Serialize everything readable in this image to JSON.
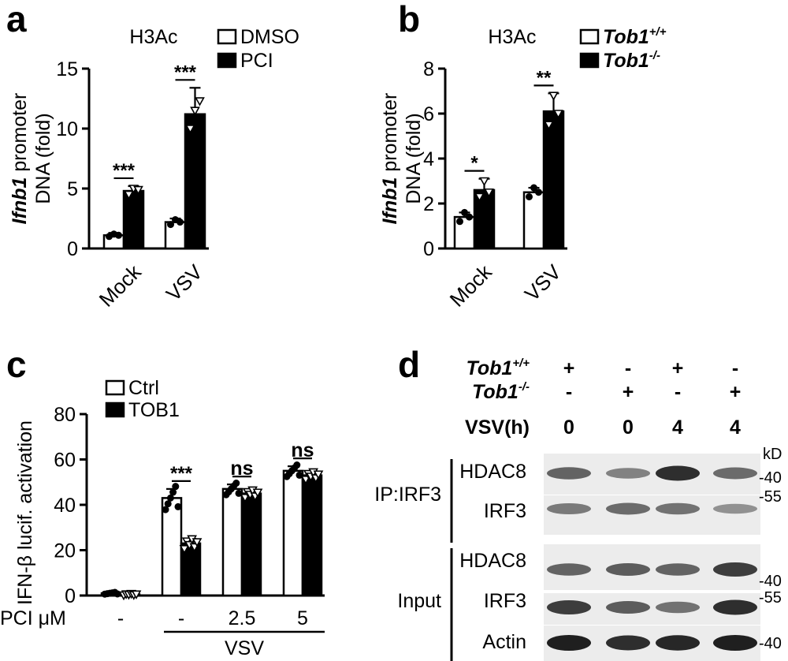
{
  "panels": [
    {
      "letter": "a"
    },
    {
      "letter": "b"
    },
    {
      "letter": "c"
    },
    {
      "letter": "d"
    }
  ],
  "chart_data": [
    {
      "panel": "a",
      "type": "bar",
      "title": "H3Ac",
      "ylabel_italic": "Ifnb1",
      "ylabel_rest": " promoter",
      "ylabel_line2": "DNA (fold)",
      "ylim": [
        0,
        15
      ],
      "yticks": [
        "0",
        "5",
        "10",
        "15"
      ],
      "categories": [
        "Mock",
        "VSV"
      ],
      "legend": [
        "DMSO",
        "PCI"
      ],
      "series": [
        {
          "name": "DMSO",
          "values": [
            1.1,
            2.2
          ],
          "errors": [
            0.2,
            0.3
          ],
          "points": [
            [
              1.0,
              1.2,
              1.1
            ],
            [
              2.0,
              2.4,
              2.2
            ]
          ]
        },
        {
          "name": "PCI",
          "values": [
            4.8,
            11.2
          ],
          "errors": [
            0.4,
            2.2
          ],
          "points": [
            [
              4.5,
              5.0,
              4.9
            ],
            [
              10.0,
              11.5,
              12.3
            ]
          ]
        }
      ],
      "significance": [
        "***",
        "***"
      ]
    },
    {
      "panel": "b",
      "type": "bar",
      "title": "H3Ac",
      "ylabel_italic": "Ifnb1",
      "ylabel_rest": " promoter",
      "ylabel_line2": "DNA (fold)",
      "ylim": [
        0,
        8
      ],
      "yticks": [
        "0",
        "2",
        "4",
        "6",
        "8"
      ],
      "categories": [
        "Mock",
        "VSV"
      ],
      "legend": [
        "Tob1",
        "Tob1"
      ],
      "legend_sup": [
        "+/+",
        "-/-"
      ],
      "series": [
        {
          "name": "Tob1+/+",
          "values": [
            1.4,
            2.5
          ],
          "errors": [
            0.2,
            0.2
          ],
          "points": [
            [
              1.2,
              1.6,
              1.4
            ],
            [
              2.3,
              2.7,
              2.5
            ]
          ]
        },
        {
          "name": "Tob1-/-",
          "values": [
            2.6,
            6.1
          ],
          "errors": [
            0.5,
            0.8
          ],
          "points": [
            [
              2.3,
              3.0,
              2.5
            ],
            [
              5.5,
              6.8,
              6.0
            ]
          ]
        }
      ],
      "significance": [
        "*",
        "**"
      ]
    },
    {
      "panel": "c",
      "type": "bar",
      "ylabel": "IFN-β lucif. activation",
      "ylim": [
        0,
        80
      ],
      "yticks": [
        "0",
        "20",
        "40",
        "60",
        "80"
      ],
      "categories": [
        "-",
        "-",
        "2.5",
        "5"
      ],
      "xaxis_prefix": "PCI μM",
      "group_label": "VSV",
      "legend": [
        "Ctrl",
        "TOB1"
      ],
      "series": [
        {
          "name": "Ctrl",
          "values": [
            1,
            43,
            47,
            55
          ],
          "errors": [
            0.3,
            4,
            2,
            2
          ]
        },
        {
          "name": "TOB1",
          "values": [
            0.5,
            23,
            45,
            53
          ],
          "errors": [
            0.3,
            2,
            1.5,
            1.5
          ]
        }
      ],
      "significance": [
        "",
        "***",
        "ns",
        "ns"
      ]
    }
  ],
  "blot": {
    "rows_header": [
      {
        "label_italic": "Tob1",
        "label_sup": "+/+",
        "marks": [
          "+",
          "-",
          "+",
          "-"
        ]
      },
      {
        "label_italic": "Tob1",
        "label_sup": "-/-",
        "marks": [
          "-",
          "+",
          "-",
          "+"
        ]
      },
      {
        "label": "VSV(h)",
        "marks": [
          "0",
          "0",
          "4",
          "4"
        ]
      }
    ],
    "kd_label": "kD",
    "groups": [
      {
        "label": "IP:IRF3",
        "bands": [
          "HDAC8",
          "IRF3"
        ]
      },
      {
        "label": "Input",
        "bands": [
          "HDAC8",
          "IRF3",
          "Actin"
        ]
      }
    ],
    "markers": [
      "-40",
      "-55",
      "-40",
      "-55",
      "-40"
    ]
  }
}
